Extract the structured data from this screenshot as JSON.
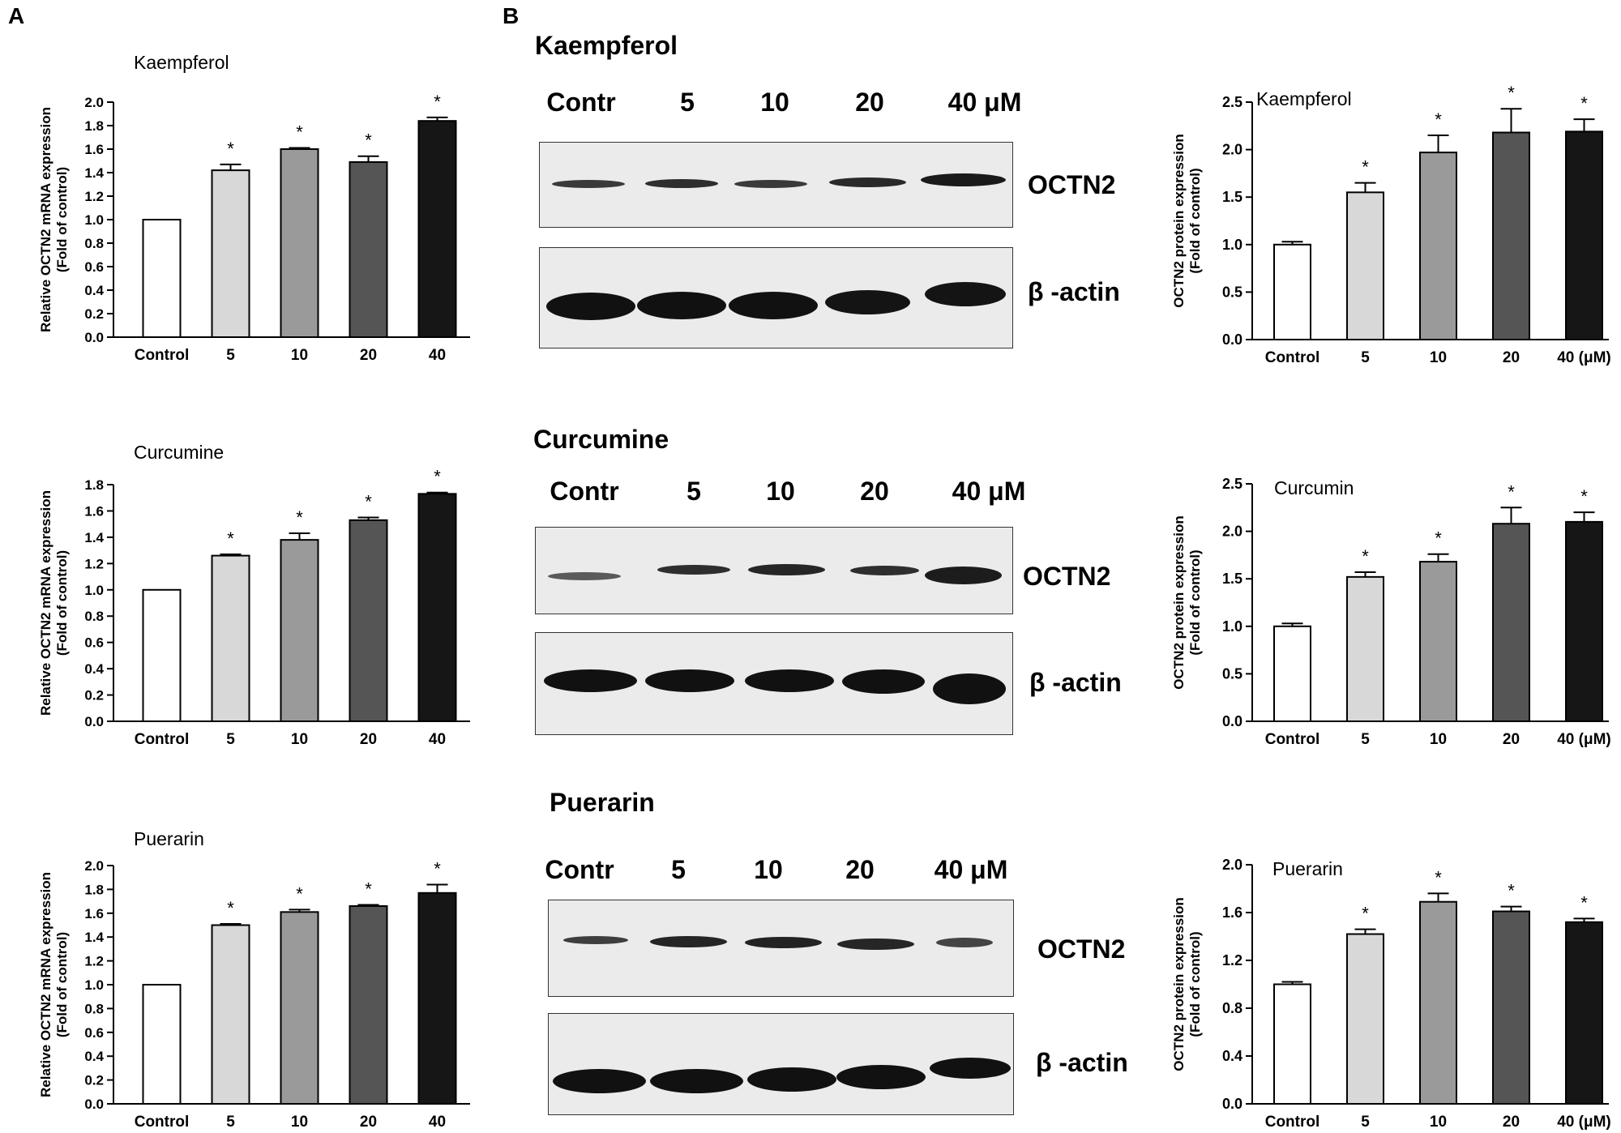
{
  "panels": {
    "a": "A",
    "b": "B"
  },
  "mrna_ylabel": [
    "Relative OCTN2 mRNA expression",
    "(Fold of control)"
  ],
  "protein_ylabel": [
    "OCTN2 protein expression",
    "(Fold of control)"
  ],
  "bar_colors": [
    "#ffffff",
    "#d8d8d8",
    "#9a9a9a",
    "#555555",
    "#161616"
  ],
  "blots": [
    {
      "title": "Kaempferol",
      "lanes": [
        "Contr",
        "5",
        "10",
        "20",
        "40 μM"
      ],
      "target_label": "OCTN2",
      "loading_label": "β -actin"
    },
    {
      "title": "Curcumine",
      "lanes": [
        "Contr",
        "5",
        "10",
        "20",
        "40 μM"
      ],
      "target_label": "OCTN2",
      "loading_label": "β -actin"
    },
    {
      "title": "Puerarin",
      "lanes": [
        "Contr",
        "5",
        "10",
        "20",
        "40 μM"
      ],
      "target_label": "OCTN2",
      "loading_label": "β -actin"
    }
  ],
  "chart_data": [
    {
      "type": "bar",
      "title": "Kaempferol",
      "ylabel": "Relative OCTN2 mRNA expression (Fold of control)",
      "categories": [
        "Control",
        "5",
        "10",
        "20",
        "40"
      ],
      "values": [
        1.0,
        1.42,
        1.6,
        1.49,
        1.84
      ],
      "errors": [
        0,
        0.05,
        0.01,
        0.05,
        0.03
      ],
      "significance": [
        "",
        "*",
        "*",
        "*",
        "*"
      ],
      "ylim": [
        0,
        2.0
      ],
      "ticks": [
        "0.0",
        "0.2",
        "0.4",
        "0.6",
        "0.8",
        "1.0",
        "1.2",
        "1.4",
        "1.6",
        "1.8",
        "2.0"
      ]
    },
    {
      "type": "bar",
      "title": "Curcumine",
      "ylabel": "Relative OCTN2 mRNA expression (Fold of control)",
      "categories": [
        "Control",
        "5",
        "10",
        "20",
        "40"
      ],
      "values": [
        1.0,
        1.26,
        1.38,
        1.53,
        1.73
      ],
      "errors": [
        0,
        0.01,
        0.05,
        0.02,
        0.01
      ],
      "significance": [
        "",
        "*",
        "*",
        "*",
        "*"
      ],
      "ylim": [
        0,
        1.8
      ],
      "ticks": [
        "0.0",
        "0.2",
        "0.4",
        "0.6",
        "0.8",
        "1.0",
        "1.2",
        "1.4",
        "1.6",
        "1.8"
      ]
    },
    {
      "type": "bar",
      "title": "Puerarin",
      "ylabel": "Relative OCTN2 mRNA expression (Fold of control)",
      "categories": [
        "Control",
        "5",
        "10",
        "20",
        "40"
      ],
      "values": [
        1.0,
        1.5,
        1.61,
        1.66,
        1.77
      ],
      "errors": [
        0,
        0.01,
        0.02,
        0.01,
        0.07
      ],
      "significance": [
        "",
        "*",
        "*",
        "*",
        "*"
      ],
      "ylim": [
        0,
        2.0
      ],
      "ticks": [
        "0.0",
        "0.2",
        "0.4",
        "0.6",
        "0.8",
        "1.0",
        "1.2",
        "1.4",
        "1.6",
        "1.8",
        "2.0"
      ]
    },
    {
      "type": "bar",
      "title": "Kaempferol",
      "ylabel": "OCTN2 protein expression (Fold of control)",
      "categories": [
        "Control",
        "5",
        "10",
        "20",
        "40 (μM)"
      ],
      "values": [
        1.0,
        1.55,
        1.97,
        2.18,
        2.19
      ],
      "errors": [
        0.03,
        0.1,
        0.18,
        0.25,
        0.13
      ],
      "significance": [
        "",
        "*",
        "*",
        "*",
        "*"
      ],
      "ylim": [
        0,
        2.5
      ],
      "ticks": [
        "0.0",
        "0.5",
        "1.0",
        "1.5",
        "2.0",
        "2.5"
      ]
    },
    {
      "type": "bar",
      "title": "Curcumin",
      "ylabel": "OCTN2 protein expression (Fold of control)",
      "categories": [
        "Control",
        "5",
        "10",
        "20",
        "40 (μM)"
      ],
      "values": [
        1.0,
        1.52,
        1.68,
        2.08,
        2.1
      ],
      "errors": [
        0.03,
        0.05,
        0.08,
        0.17,
        0.1
      ],
      "significance": [
        "",
        "*",
        "*",
        "*",
        "*"
      ],
      "ylim": [
        0,
        2.5
      ],
      "ticks": [
        "0.0",
        "0.5",
        "1.0",
        "1.5",
        "2.0",
        "2.5"
      ]
    },
    {
      "type": "bar",
      "title": "Puerarin",
      "ylabel": "OCTN2 protein expression (Fold of control)",
      "categories": [
        "Control",
        "5",
        "10",
        "20",
        "40 (μM)"
      ],
      "values": [
        1.0,
        1.42,
        1.69,
        1.61,
        1.52
      ],
      "errors": [
        0.02,
        0.04,
        0.07,
        0.04,
        0.03
      ],
      "significance": [
        "",
        "*",
        "*",
        "*",
        "*"
      ],
      "ylim": [
        0,
        2.0
      ],
      "ticks": [
        "0.0",
        "0.4",
        "0.8",
        "1.2",
        "1.6",
        "2.0"
      ]
    }
  ]
}
